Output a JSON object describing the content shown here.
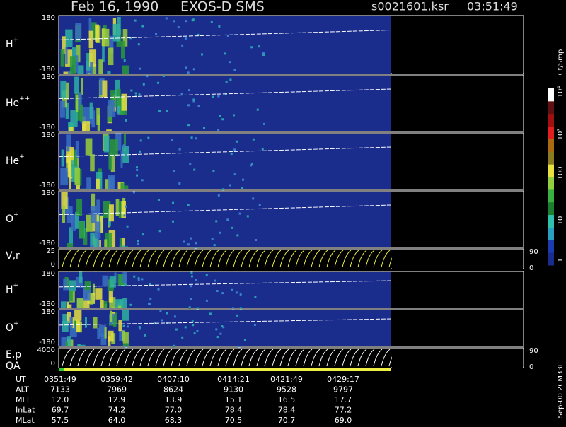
{
  "header": {
    "date": "Feb 16, 1990",
    "instrument": "EXOS-D SMS",
    "file": "s0021601.ksr",
    "time": "03:51:49"
  },
  "panels": [
    {
      "label": "H",
      "charge": "+",
      "top": "180",
      "bottom": "-180"
    },
    {
      "label": "He",
      "charge": "++",
      "top": "180",
      "bottom": "-180"
    },
    {
      "label": "He",
      "charge": "+",
      "top": "180",
      "bottom": "-180"
    },
    {
      "label": "O",
      "charge": "+",
      "top": "180",
      "bottom": "-180"
    },
    {
      "label": "V,r",
      "top": "25",
      "bottom": "0",
      "right_top": "90",
      "right_bottom": "0"
    },
    {
      "label": "H",
      "charge": "+",
      "top": "180",
      "bottom": "-180"
    },
    {
      "label": "O",
      "charge": "+",
      "top": "180",
      "bottom": "-180"
    },
    {
      "label": "E,p",
      "top": "4000",
      "bottom": "0",
      "right_top": "90",
      "right_bottom": "0"
    }
  ],
  "qa_label": "QA",
  "colorbar": {
    "unit": "Ct/Smp",
    "labels": [
      "10⁴",
      "10³",
      "100",
      "10",
      "1"
    ]
  },
  "footer_note": "Sep-00 2CM33L",
  "table": {
    "rows": [
      {
        "label": "UT",
        "values": [
          "0351:49",
          "0359:42",
          "0407:10",
          "0414:21",
          "0421:49",
          "0429:17"
        ]
      },
      {
        "label": "ALT",
        "values": [
          "7133",
          "7969",
          "8624",
          "9130",
          "9528",
          "9797"
        ]
      },
      {
        "label": "MLT",
        "values": [
          "12.0",
          "12.9",
          "13.9",
          "15.1",
          "16.5",
          "17.7"
        ]
      },
      {
        "label": "InLat",
        "values": [
          "69.7",
          "74.2",
          "77.0",
          "78.4",
          "78.4",
          "77.2"
        ]
      },
      {
        "label": "MLat",
        "values": [
          "57.5",
          "64.0",
          "68.3",
          "70.5",
          "70.7",
          "69.0"
        ]
      }
    ]
  }
}
